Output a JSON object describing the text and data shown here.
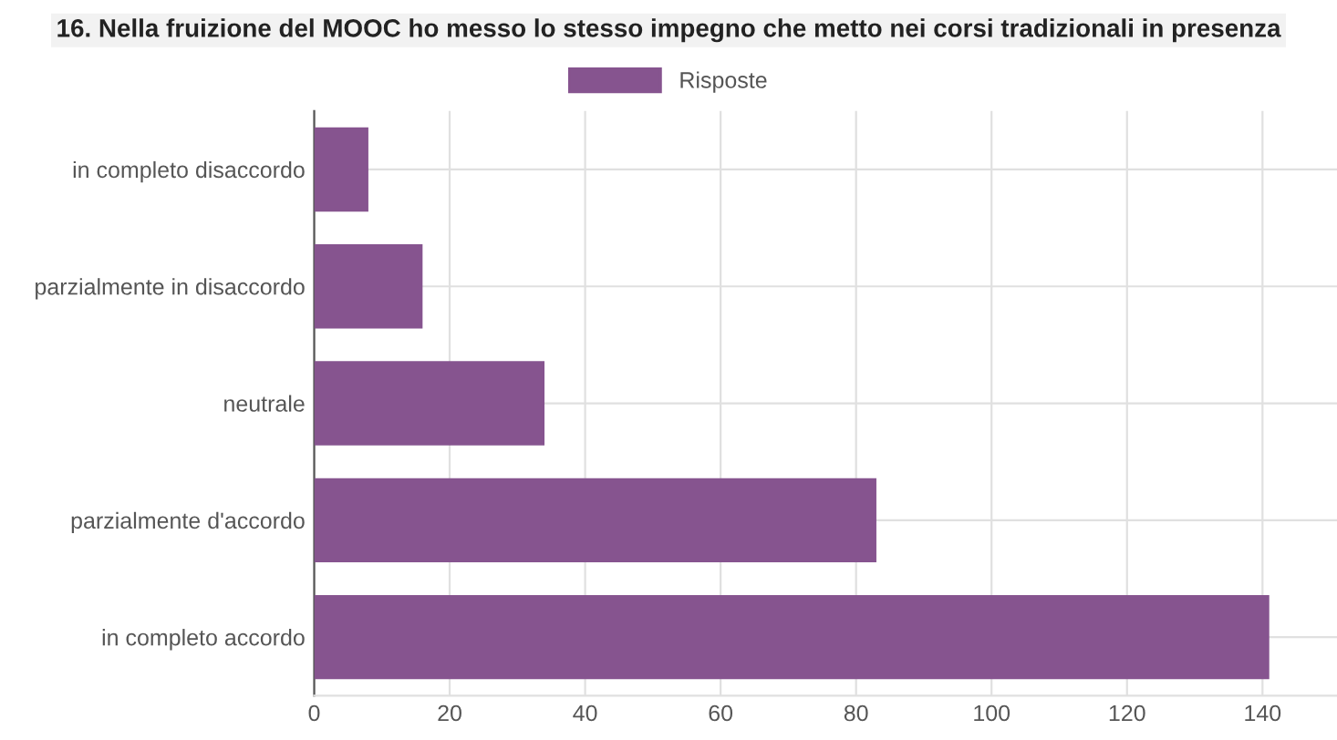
{
  "chart_data": {
    "type": "bar",
    "orientation": "horizontal",
    "title": "16. Nella fruizione del MOOC ho messo lo stesso impegno che metto nei corsi tradizionali in presenza",
    "categories": [
      "in completo disaccordo",
      "parzialmente in disaccordo",
      "neutrale",
      "parzialmente d'accordo",
      "in completo accordo"
    ],
    "series": [
      {
        "name": "Risposte",
        "color": "#86548f",
        "values": [
          8,
          16,
          34,
          83,
          141
        ]
      }
    ],
    "xlim": [
      0,
      151
    ],
    "xticks": [
      0,
      20,
      40,
      60,
      80,
      100,
      120,
      140
    ],
    "grid": true,
    "legend": "top"
  }
}
